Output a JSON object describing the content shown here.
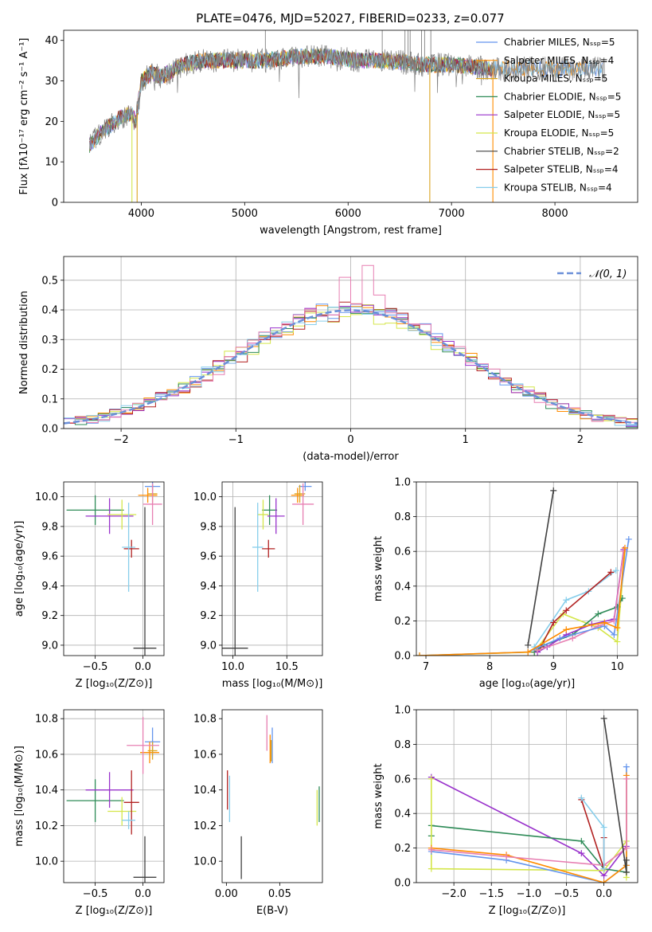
{
  "figure": {
    "title": "PLATE=0476, MJD=52027, FIBERID=0233, z=0.077"
  },
  "colors": {
    "chabrier_miles": "#6495ed",
    "salpeter_miles": "#ff8c00",
    "kroupa_miles": "#daa520",
    "chabrier_elodie": "#2e8b57",
    "salpeter_elodie": "#9932cc",
    "kroupa_elodie": "#d4e64a",
    "chabrier_stelib": "#404040",
    "salpeter_stelib": "#b22222",
    "kroupa_stelib": "#87ceeb",
    "pink": "#e77fb2",
    "data": "#808080"
  },
  "chart_data": [
    {
      "id": "spectrum",
      "type": "line",
      "xlabel": "wavelength [Angstrom, rest frame]",
      "ylabel": "Flux [fλ10⁻¹⁷ erg cm⁻² s⁻¹ A⁻¹]",
      "xlim": [
        3250,
        8800
      ],
      "ylim": [
        0,
        42.5
      ],
      "xticks": [
        4000,
        5000,
        6000,
        7000,
        8000
      ],
      "yticks": [
        0,
        10,
        20,
        30,
        40
      ],
      "grid": false,
      "legend_position": "top-right",
      "legend": [
        {
          "name": "Chabrier MILES, N_SSP=5",
          "color": "#6495ed"
        },
        {
          "name": "Salpeter MILES, N_SSP=4",
          "color": "#ff8c00"
        },
        {
          "name": "Kroupa MILES, N_SSP=5",
          "color": "#daa520"
        },
        {
          "name": "Chabrier ELODIE, N_SSP=5",
          "color": "#2e8b57"
        },
        {
          "name": "Salpeter ELODIE, N_SSP=5",
          "color": "#9932cc"
        },
        {
          "name": "Kroupa ELODIE, N_SSP=5",
          "color": "#d4e64a"
        },
        {
          "name": "Chabrier STELIB, N_SSP=2",
          "color": "#404040"
        },
        {
          "name": "Salpeter STELIB, N_SSP=4",
          "color": "#b22222"
        },
        {
          "name": "Kroupa STELIB, N_SSP=4",
          "color": "#87ceeb"
        }
      ],
      "continuum": {
        "x": [
          3500,
          3600,
          3700,
          3800,
          3900,
          3950,
          4000,
          4100,
          4200,
          4400,
          4600,
          4800,
          5000,
          5200,
          5500,
          5800,
          6100,
          6400,
          6700,
          7000,
          7400,
          7800,
          8200,
          8500
        ],
        "y": [
          14,
          17,
          19,
          21,
          22,
          20,
          30,
          32,
          31,
          34,
          35,
          35,
          35,
          35,
          36,
          36,
          35,
          35,
          34,
          34,
          33,
          33,
          33,
          33
        ]
      },
      "drops_to_zero": [
        3910,
        3960,
        6790,
        7400
      ],
      "data_spikes": [
        5200,
        6330,
        6550,
        6580,
        6600,
        6710,
        6740,
        6800
      ]
    },
    {
      "id": "residuals",
      "type": "histogram",
      "xlabel": "(data-model)/error",
      "ylabel": "Normed distribution",
      "xlim": [
        -2.5,
        2.5
      ],
      "ylim": [
        0,
        0.58
      ],
      "xticks": [
        -2,
        -1,
        0,
        1,
        2
      ],
      "yticks": [
        0.0,
        0.1,
        0.2,
        0.3,
        0.4,
        0.5
      ],
      "grid": true,
      "legend": [
        {
          "name": "𝒩(0, 1)",
          "style": "dashed",
          "color": "#6a8fd8"
        }
      ],
      "bins": {
        "start": -2.5,
        "width": 0.1,
        "count": 50
      },
      "peak_bins": {
        "index": 25,
        "values": [
          0.51,
          0.42,
          0.55,
          0.45,
          0.39
        ]
      }
    },
    {
      "id": "age_vs_Z",
      "type": "errorbar",
      "xlabel": "Z [log₁₀(Z/Z⊙)]",
      "ylabel": "age  [log₁₀(age/yr)]",
      "xlim": [
        -0.83,
        0.22
      ],
      "ylim": [
        8.93,
        10.1
      ],
      "xticks": [
        -0.5,
        0.0
      ],
      "yticks": [
        9.0,
        9.2,
        9.4,
        9.6,
        9.8,
        10.0
      ],
      "grid": true,
      "points": [
        {
          "x": 0.1,
          "y": 10.07,
          "xerr": 0.08,
          "yerr": 0.03,
          "color": "#6495ed"
        },
        {
          "x": 0.05,
          "y": 10.01,
          "xerr": 0.1,
          "yerr": 0.05,
          "color": "#ff8c00"
        },
        {
          "x": 0.1,
          "y": 10.02,
          "xerr": 0.05,
          "yerr": 0.06,
          "color": "#daa520"
        },
        {
          "x": -0.5,
          "y": 9.91,
          "xerr": 0.3,
          "yerr": 0.1,
          "color": "#2e8b57"
        },
        {
          "x": -0.35,
          "y": 9.87,
          "xerr": 0.25,
          "yerr": 0.12,
          "color": "#9932cc"
        },
        {
          "x": -0.22,
          "y": 9.88,
          "xerr": 0.15,
          "yerr": 0.1,
          "color": "#d4e64a"
        },
        {
          "x": 0.02,
          "y": 8.98,
          "xerr": 0.12,
          "yerr": 0.95,
          "color": "#404040"
        },
        {
          "x": -0.12,
          "y": 9.65,
          "xerr": 0.08,
          "yerr": 0.06,
          "color": "#b22222"
        },
        {
          "x": -0.15,
          "y": 9.66,
          "xerr": 0.07,
          "yerr": 0.3,
          "color": "#87ceeb"
        },
        {
          "x": 0.1,
          "y": 9.95,
          "xerr": 0.1,
          "yerr": 0.14,
          "color": "#e77fb2"
        }
      ]
    },
    {
      "id": "age_vs_mass",
      "type": "errorbar",
      "xlabel": "mass [log₁₀(M/M⊙)]",
      "ylabel": "",
      "xlim": [
        9.9,
        10.83
      ],
      "ylim": [
        8.93,
        10.1
      ],
      "xticks": [
        10.0,
        10.5
      ],
      "yticks": [
        9.0,
        9.2,
        9.4,
        9.6,
        9.8,
        10.0
      ],
      "grid": true,
      "points": [
        {
          "x": 10.67,
          "y": 10.07,
          "xerr": 0.06,
          "yerr": 0.03,
          "color": "#6495ed"
        },
        {
          "x": 10.6,
          "y": 10.01,
          "xerr": 0.06,
          "yerr": 0.05,
          "color": "#ff8c00"
        },
        {
          "x": 10.62,
          "y": 10.02,
          "xerr": 0.05,
          "yerr": 0.06,
          "color": "#daa520"
        },
        {
          "x": 10.34,
          "y": 9.91,
          "xerr": 0.07,
          "yerr": 0.1,
          "color": "#2e8b57"
        },
        {
          "x": 10.4,
          "y": 9.87,
          "xerr": 0.08,
          "yerr": 0.12,
          "color": "#9932cc"
        },
        {
          "x": 10.28,
          "y": 9.88,
          "xerr": 0.05,
          "yerr": 0.1,
          "color": "#d4e64a"
        },
        {
          "x": 10.02,
          "y": 8.98,
          "xerr": 0.12,
          "yerr": 0.95,
          "color": "#404040"
        },
        {
          "x": 10.33,
          "y": 9.65,
          "xerr": 0.06,
          "yerr": 0.06,
          "color": "#b22222"
        },
        {
          "x": 10.23,
          "y": 9.66,
          "xerr": 0.05,
          "yerr": 0.3,
          "color": "#87ceeb"
        },
        {
          "x": 10.65,
          "y": 9.95,
          "xerr": 0.1,
          "yerr": 0.14,
          "color": "#e77fb2"
        }
      ]
    },
    {
      "id": "mass_weight_vs_age",
      "type": "line",
      "xlabel": "age  [log₁₀(age/yr)]",
      "ylabel": "mass weight",
      "xlim": [
        6.85,
        10.32
      ],
      "ylim": [
        0,
        1.0
      ],
      "xticks": [
        7,
        8,
        9,
        10
      ],
      "yticks": [
        0.0,
        0.2,
        0.4,
        0.6,
        0.8,
        1.0
      ],
      "grid": true,
      "series": [
        {
          "color": "#d4e64a",
          "x": [
            6.9,
            8.7,
            9.15,
            9.7,
            10.0,
            10.12
          ],
          "y": [
            0.0,
            0.02,
            0.24,
            0.16,
            0.08,
            0.6
          ]
        },
        {
          "color": "#2e8b57",
          "x": [
            8.7,
            8.85,
            9.3,
            9.7,
            10.0,
            10.08
          ],
          "y": [
            0.02,
            0.06,
            0.12,
            0.24,
            0.28,
            0.33
          ]
        },
        {
          "color": "#9932cc",
          "x": [
            8.75,
            8.9,
            9.2,
            9.6,
            9.95,
            10.1
          ],
          "y": [
            0.02,
            0.05,
            0.12,
            0.18,
            0.21,
            0.61
          ]
        },
        {
          "color": "#404040",
          "x": [
            8.6,
            9.0
          ],
          "y": [
            0.06,
            0.95
          ]
        },
        {
          "color": "#87ceeb",
          "x": [
            8.7,
            9.2,
            9.55,
            9.98
          ],
          "y": [
            0.05,
            0.32,
            0.37,
            0.49
          ]
        },
        {
          "color": "#b22222",
          "x": [
            8.8,
            9.0,
            9.2,
            9.9
          ],
          "y": [
            0.05,
            0.19,
            0.26,
            0.48
          ]
        },
        {
          "color": "#e77fb2",
          "x": [
            8.75,
            9.3,
            9.7,
            9.95,
            10.1
          ],
          "y": [
            0.03,
            0.1,
            0.17,
            0.2,
            0.6
          ]
        },
        {
          "color": "#6495ed",
          "x": [
            6.9,
            8.6,
            9.1,
            9.8,
            9.95,
            10.18
          ],
          "y": [
            0.0,
            0.02,
            0.1,
            0.17,
            0.12,
            0.67
          ]
        },
        {
          "color": "#ff8c00",
          "x": [
            6.9,
            8.6,
            9.2,
            9.8,
            10.0,
            10.12
          ],
          "y": [
            0.0,
            0.02,
            0.15,
            0.19,
            0.16,
            0.62
          ]
        }
      ]
    },
    {
      "id": "mass_vs_Z",
      "type": "errorbar",
      "xlabel": "Z [log₁₀(Z/Z⊙)]",
      "ylabel": "mass [log₁₀(M/M⊙)]",
      "xlim": [
        -0.83,
        0.22
      ],
      "ylim": [
        9.88,
        10.85
      ],
      "xticks": [
        -0.5,
        0.0
      ],
      "yticks": [
        10.0,
        10.2,
        10.4,
        10.6,
        10.8
      ],
      "grid": true,
      "points": [
        {
          "x": 0.1,
          "y": 10.67,
          "xerr": 0.08,
          "yerr": 0.08,
          "color": "#6495ed"
        },
        {
          "x": 0.07,
          "y": 10.61,
          "xerr": 0.1,
          "yerr": 0.06,
          "color": "#ff8c00"
        },
        {
          "x": 0.1,
          "y": 10.62,
          "xerr": 0.05,
          "yerr": 0.05,
          "color": "#daa520"
        },
        {
          "x": -0.5,
          "y": 10.34,
          "xerr": 0.3,
          "yerr": 0.12,
          "color": "#2e8b57"
        },
        {
          "x": -0.35,
          "y": 10.4,
          "xerr": 0.25,
          "yerr": 0.1,
          "color": "#9932cc"
        },
        {
          "x": -0.22,
          "y": 10.28,
          "xerr": 0.15,
          "yerr": 0.08,
          "color": "#d4e64a"
        },
        {
          "x": 0.02,
          "y": 9.91,
          "xerr": 0.12,
          "yerr": 0.23,
          "color": "#404040"
        },
        {
          "x": -0.12,
          "y": 10.33,
          "xerr": 0.08,
          "yerr": 0.18,
          "color": "#b22222"
        },
        {
          "x": -0.15,
          "y": 10.23,
          "xerr": 0.07,
          "yerr": 0.05,
          "color": "#87ceeb"
        },
        {
          "x": 0.0,
          "y": 10.65,
          "xerr": 0.17,
          "yerr": 0.16,
          "color": "#e77fb2"
        }
      ]
    },
    {
      "id": "mass_vs_EBV",
      "type": "errorbar",
      "xlabel": "E(B-V)",
      "ylabel": "",
      "xlim": [
        -0.004,
        0.09
      ],
      "ylim": [
        9.88,
        10.85
      ],
      "xticks": [
        0.0,
        0.05
      ],
      "xtick_labels": [
        "0.00",
        "0.05"
      ],
      "yticks": [
        10.0,
        10.2,
        10.4,
        10.6,
        10.8
      ],
      "grid": false,
      "points": [
        {
          "x": 0.043,
          "y": 10.65,
          "xerr": 0.0,
          "yerr": 0.1,
          "color": "#6495ed"
        },
        {
          "x": 0.041,
          "y": 10.63,
          "xerr": 0.0,
          "yerr": 0.08,
          "color": "#ff8c00"
        },
        {
          "x": 0.042,
          "y": 10.62,
          "xerr": 0.0,
          "yerr": 0.06,
          "color": "#daa520"
        },
        {
          "x": 0.087,
          "y": 10.32,
          "xerr": 0.0,
          "yerr": 0.1,
          "color": "#2e8b57"
        },
        {
          "x": 0.085,
          "y": 10.3,
          "xerr": 0.0,
          "yerr": 0.1,
          "color": "#d4e64a"
        },
        {
          "x": 0.014,
          "y": 10.02,
          "xerr": 0.0,
          "yerr": 0.12,
          "color": "#404040"
        },
        {
          "x": 0.001,
          "y": 10.4,
          "xerr": 0.0,
          "yerr": 0.11,
          "color": "#b22222"
        },
        {
          "x": 0.003,
          "y": 10.35,
          "xerr": 0.0,
          "yerr": 0.13,
          "color": "#87ceeb"
        },
        {
          "x": 0.038,
          "y": 10.72,
          "xerr": 0.0,
          "yerr": 0.1,
          "color": "#e77fb2"
        }
      ]
    },
    {
      "id": "mass_weight_vs_Z",
      "type": "line",
      "xlabel": "Z [log₁₀(Z/Z⊙)]",
      "ylabel": "mass weight",
      "xlim": [
        -2.5,
        0.45
      ],
      "ylim": [
        0,
        1.0
      ],
      "xticks": [
        -2.0,
        -1.5,
        -1.0,
        -0.5,
        0.0
      ],
      "yticks": [
        0.0,
        0.2,
        0.4,
        0.6,
        0.8,
        1.0
      ],
      "grid": true,
      "series": [
        {
          "color": "#9932cc",
          "x": [
            -2.3,
            -0.3,
            0.0,
            0.3
          ],
          "y": [
            0.61,
            0.17,
            0.04,
            0.21
          ]
        },
        {
          "color": "#2e8b57",
          "x": [
            -2.3,
            -2.3,
            -0.3,
            0.0,
            0.3
          ],
          "y": [
            0.27,
            0.33,
            0.24,
            0.08,
            0.06
          ]
        },
        {
          "color": "#d4e64a",
          "x": [
            -2.3,
            -2.3,
            0.0,
            0.3,
            0.3
          ],
          "y": [
            0.6,
            0.08,
            0.07,
            0.24,
            0.03
          ]
        },
        {
          "color": "#6495ed",
          "x": [
            -2.3,
            -1.3,
            0.0,
            0.3,
            0.3
          ],
          "y": [
            0.18,
            0.13,
            0.0,
            0.1,
            0.67
          ]
        },
        {
          "color": "#ff8c00",
          "x": [
            -2.3,
            -1.3,
            0.0,
            0.3,
            0.3
          ],
          "y": [
            0.2,
            0.16,
            0.0,
            0.1,
            0.62
          ]
        },
        {
          "color": "#e77fb2",
          "x": [
            -2.3,
            -1.3,
            0.0,
            0.3,
            0.3
          ],
          "y": [
            0.19,
            0.15,
            0.1,
            0.2,
            0.6
          ]
        },
        {
          "color": "#404040",
          "x": [
            0.0,
            0.3,
            0.3
          ],
          "y": [
            0.95,
            0.06,
            0.13
          ]
        },
        {
          "color": "#b22222",
          "x": [
            -0.3,
            0.0,
            0.0
          ],
          "y": [
            0.48,
            0.08,
            0.26
          ]
        },
        {
          "color": "#87ceeb",
          "x": [
            -0.3,
            0.0,
            0.0
          ],
          "y": [
            0.49,
            0.32,
            0.08
          ]
        }
      ]
    }
  ]
}
